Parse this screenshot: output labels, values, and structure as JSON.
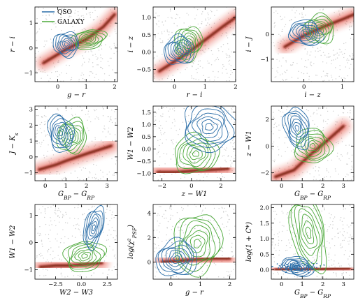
{
  "legend": {
    "items": [
      {
        "label": "QSO",
        "color": "#2b6ea8"
      },
      {
        "label": "GALAXY",
        "color": "#4aa838"
      }
    ]
  },
  "colors": {
    "qso": "#2b6ea8",
    "galaxy": "#4aa838",
    "star_density": "#e0301e",
    "outliers": "#b9b9b9"
  },
  "chart_data": [
    {
      "type": "scatter",
      "xlabel": "g − r",
      "ylabel": "r − i",
      "xlim": [
        -0.8,
        2.1
      ],
      "ylim": [
        -1.35,
        1.65
      ],
      "xticks": [
        0,
        1,
        2
      ],
      "yticks": [
        -1,
        0,
        1
      ],
      "xtick_labels": [
        "0",
        "1",
        "2"
      ],
      "ytick_labels": [
        "−1",
        "0",
        "1"
      ],
      "show_legend": true,
      "legend_position": "top-left",
      "qso_center": [
        0.3,
        0.15
      ],
      "qso_spread": [
        0.45,
        0.5
      ],
      "galaxy_center": [
        1.1,
        0.35
      ],
      "galaxy_spread": [
        0.6,
        0.38
      ],
      "star_locus": [
        [
          -0.5,
          -0.6
        ],
        [
          0.3,
          -0.05
        ],
        [
          1.0,
          0.35
        ],
        [
          1.6,
          0.85
        ],
        [
          2.0,
          1.35
        ]
      ]
    },
    {
      "type": "scatter",
      "xlabel": "r − i",
      "ylabel": "i − z",
      "xlim": [
        -0.7,
        2.0
      ],
      "ylim": [
        -0.85,
        1.3
      ],
      "xticks": [
        0,
        1,
        2
      ],
      "yticks": [
        -0.5,
        0,
        0.5,
        1
      ],
      "xtick_labels": [
        "0",
        "1",
        "2"
      ],
      "ytick_labels": [
        "−0.5",
        "0.0",
        "0.5",
        "1.0"
      ],
      "show_legend": false,
      "legend_position": "",
      "qso_center": [
        0.15,
        0.05
      ],
      "qso_spread": [
        0.5,
        0.42
      ],
      "galaxy_center": [
        0.45,
        0.25
      ],
      "galaxy_spread": [
        0.45,
        0.5
      ],
      "star_locus": [
        [
          -0.5,
          -0.55
        ],
        [
          0.3,
          -0.1
        ],
        [
          1.0,
          0.35
        ],
        [
          1.6,
          0.75
        ],
        [
          2.0,
          1.0
        ]
      ]
    },
    {
      "type": "scatter",
      "xlabel": "i − z",
      "ylabel": "i − J",
      "xlim": [
        -0.85,
        1.3
      ],
      "ylim": [
        -1.9,
        1.1
      ],
      "xticks": [
        0,
        1
      ],
      "yticks": [
        -1,
        0
      ],
      "xtick_labels": [
        "0",
        "1"
      ],
      "ytick_labels": [
        "−1",
        "0"
      ],
      "show_legend": false,
      "legend_position": "",
      "qso_center": [
        0.05,
        0.05
      ],
      "qso_spread": [
        0.45,
        0.5
      ],
      "galaxy_center": [
        0.4,
        0.2
      ],
      "galaxy_spread": [
        0.4,
        0.6
      ],
      "star_locus": [
        [
          -0.5,
          -0.5
        ],
        [
          0.0,
          -0.05
        ],
        [
          0.5,
          0.3
        ],
        [
          1.0,
          0.6
        ],
        [
          1.3,
          0.8
        ]
      ]
    },
    {
      "type": "scatter",
      "xlabel": "G_BP − G_RP",
      "ylabel": "J − K_s",
      "xlim": [
        -0.5,
        3.5
      ],
      "ylim": [
        -1.5,
        3.2
      ],
      "xticks": [
        0,
        1,
        2,
        3
      ],
      "yticks": [
        -1,
        0,
        1,
        2,
        3
      ],
      "xtick_labels": [
        "0",
        "1",
        "2",
        "3"
      ],
      "ytick_labels": [
        "−1",
        "0",
        "1",
        "2",
        "3"
      ],
      "show_legend": false,
      "legend_position": "",
      "qso_center": [
        0.75,
        1.5
      ],
      "qso_spread": [
        0.6,
        1.2
      ],
      "galaxy_center": [
        1.3,
        1.3
      ],
      "galaxy_spread": [
        0.7,
        1.1
      ],
      "star_locus": [
        [
          -0.3,
          -0.8
        ],
        [
          0.5,
          -0.5
        ],
        [
          1.0,
          -0.25
        ],
        [
          2.0,
          0.2
        ],
        [
          3.2,
          0.7
        ]
      ]
    },
    {
      "type": "scatter",
      "xlabel": "z − W1",
      "ylabel": "W1 − W2",
      "xlim": [
        -2.6,
        3.0
      ],
      "ylim": [
        -1.3,
        1.75
      ],
      "xticks": [
        -2,
        0,
        2
      ],
      "yticks": [
        -1,
        -0.5,
        0,
        0.5,
        1,
        1.5
      ],
      "xtick_labels": [
        "−2",
        "0",
        "2"
      ],
      "ytick_labels": [
        "−1.0",
        "−0.5",
        "0.0",
        "0.5",
        "1.0",
        "1.5"
      ],
      "show_legend": false,
      "legend_position": "",
      "qso_center": [
        1.2,
        0.9
      ],
      "qso_spread": [
        1.8,
        1.0
      ],
      "galaxy_center": [
        0.3,
        -0.2
      ],
      "galaxy_spread": [
        1.5,
        0.8
      ],
      "star_locus": [
        [
          -2.3,
          -0.95
        ],
        [
          -1.0,
          -0.95
        ],
        [
          0.0,
          -0.9
        ],
        [
          1.5,
          -0.85
        ],
        [
          2.5,
          -0.8
        ]
      ]
    },
    {
      "type": "scatter",
      "xlabel": "G_BP − G_RP",
      "ylabel": "z − W1",
      "xlim": [
        -0.5,
        3.5
      ],
      "ylim": [
        -2.6,
        3.0
      ],
      "xticks": [
        0,
        1,
        2,
        3
      ],
      "yticks": [
        -2,
        0,
        2
      ],
      "xtick_labels": [
        "0",
        "1",
        "2",
        "3"
      ],
      "ytick_labels": [
        "−2",
        "0",
        "2"
      ],
      "show_legend": false,
      "legend_position": "",
      "qso_center": [
        0.75,
        1.35
      ],
      "qso_spread": [
        0.6,
        1.6
      ],
      "galaxy_center": [
        1.5,
        0.0
      ],
      "galaxy_spread": [
        0.9,
        1.3
      ],
      "star_locus": [
        [
          -0.3,
          -2.3
        ],
        [
          0.6,
          -1.8
        ],
        [
          1.5,
          -0.5
        ],
        [
          2.2,
          0.4
        ],
        [
          3.0,
          1.5
        ]
      ]
    },
    {
      "type": "scatter",
      "xlabel": "W2 − W3",
      "ylabel": "W1 − W2",
      "xlim": [
        -4.5,
        3.5
      ],
      "ylim": [
        -1.35,
        1.4
      ],
      "xticks": [
        -2.5,
        0,
        2.5
      ],
      "yticks": [
        -1,
        0,
        1
      ],
      "xtick_labels": [
        "−2.5",
        "0.0",
        "2.5"
      ],
      "ytick_labels": [
        "−1",
        "0",
        "1"
      ],
      "show_legend": false,
      "legend_position": "",
      "qso_center": [
        1.2,
        0.55
      ],
      "qso_spread": [
        0.9,
        0.8
      ],
      "galaxy_center": [
        0.3,
        -0.5
      ],
      "galaxy_spread": [
        2.0,
        0.55
      ],
      "star_locus": [
        [
          -4.0,
          -0.9
        ],
        [
          -2.5,
          -0.85
        ],
        [
          -1.0,
          -0.85
        ],
        [
          0.5,
          -0.8
        ],
        [
          2.0,
          -0.75
        ]
      ]
    },
    {
      "type": "scatter",
      "xlabel": "g − r",
      "ylabel": "log(χ²_PSF)",
      "xlim": [
        -0.6,
        2.2
      ],
      "ylim": [
        -1.4,
        4.7
      ],
      "xticks": [
        0,
        1,
        2
      ],
      "yticks": [
        0,
        2,
        4
      ],
      "xtick_labels": [
        "0",
        "1",
        "2"
      ],
      "ytick_labels": [
        "0",
        "2",
        "4"
      ],
      "show_legend": false,
      "legend_position": "",
      "qso_center": [
        0.2,
        0.3
      ],
      "qso_spread": [
        0.7,
        1.5
      ],
      "galaxy_center": [
        0.9,
        1.5
      ],
      "galaxy_spread": [
        0.8,
        2.5
      ],
      "star_locus": [
        [
          -0.3,
          0.0
        ],
        [
          0.3,
          0.1
        ],
        [
          0.9,
          0.2
        ],
        [
          1.5,
          0.3
        ],
        [
          2.0,
          0.3
        ]
      ]
    },
    {
      "type": "scatter",
      "xlabel": "G_BP − G_RP",
      "ylabel": "log(1 + C*)",
      "xlim": [
        -0.5,
        3.5
      ],
      "ylim": [
        -0.3,
        2.1
      ],
      "xticks": [
        0,
        1,
        2,
        3
      ],
      "yticks": [
        0,
        0.5,
        1,
        1.5,
        2
      ],
      "xtick_labels": [
        "0",
        "1",
        "2",
        "3"
      ],
      "ytick_labels": [
        "0.0",
        "0.5",
        "1.0",
        "1.5",
        "2.0"
      ],
      "show_legend": false,
      "legend_position": "",
      "qso_center": [
        0.75,
        0.1
      ],
      "qso_spread": [
        0.8,
        0.3
      ],
      "galaxy_center": [
        1.3,
        1.2
      ],
      "galaxy_spread": [
        0.8,
        1.3
      ],
      "star_locus": [
        [
          -0.3,
          0.0
        ],
        [
          0.8,
          0.02
        ],
        [
          1.8,
          0.02
        ],
        [
          2.6,
          0.04
        ],
        [
          3.3,
          0.05
        ]
      ]
    }
  ]
}
